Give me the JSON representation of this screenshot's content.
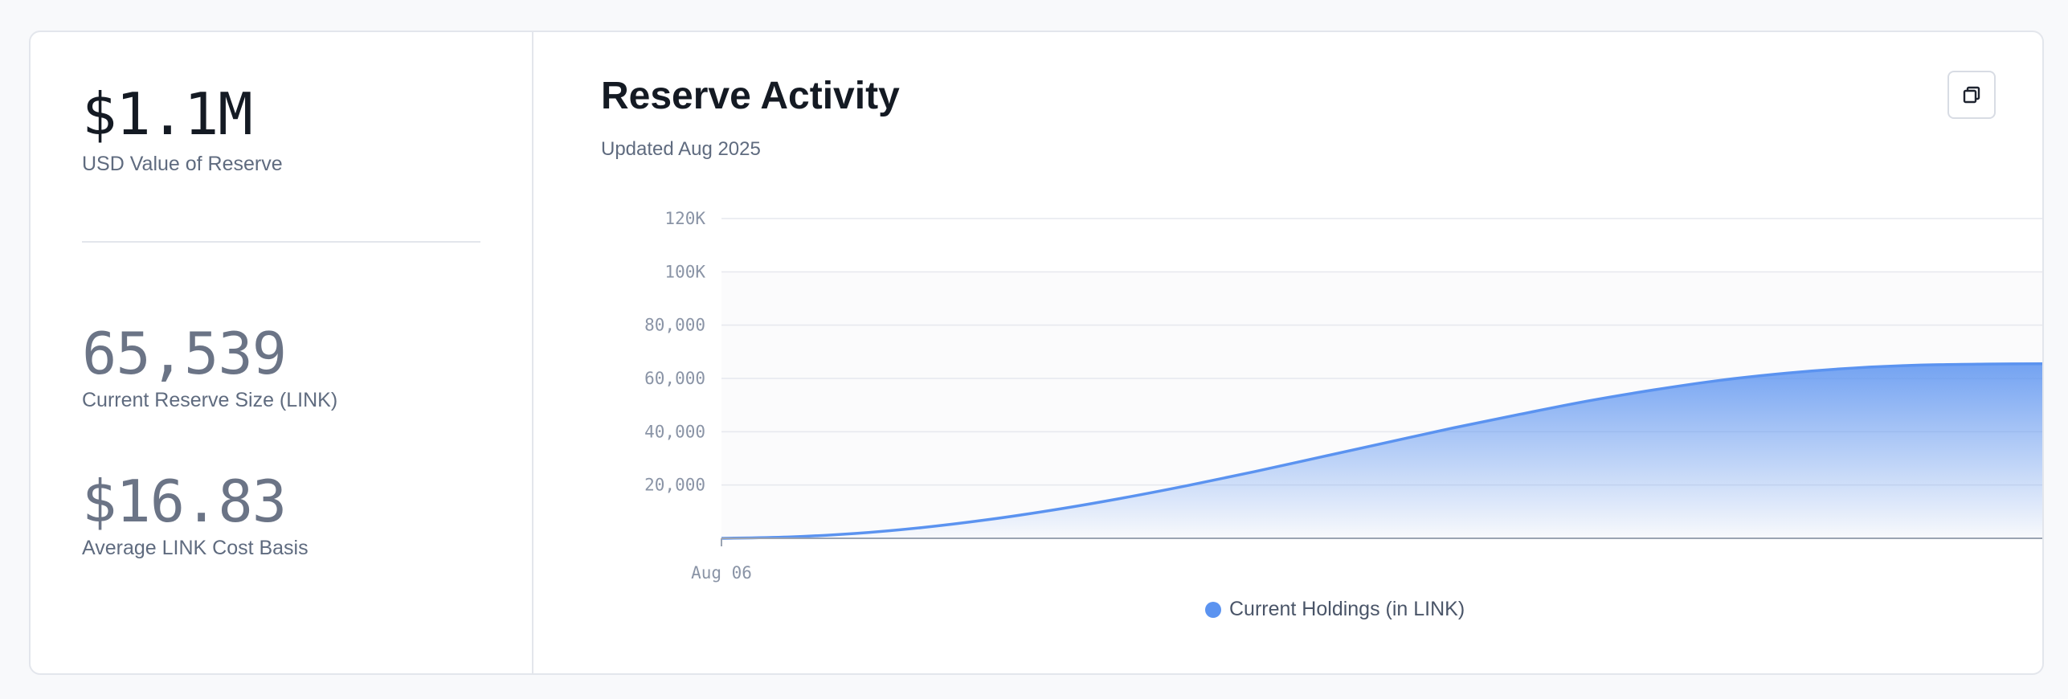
{
  "stats": [
    {
      "value": "$1.1M",
      "label": "USD Value of Reserve"
    },
    {
      "value": "65,539",
      "label": "Current Reserve Size (LINK)"
    },
    {
      "value": "$16.83",
      "label": "Average LINK Cost Basis"
    }
  ],
  "colors": {
    "primary_stat": "#141a23",
    "muted_stat": "#6b7486",
    "accent": "#5b93f0"
  },
  "header": {
    "title": "Reserve Activity",
    "subtitle": "Updated Aug 2025",
    "copy_icon": "copy-icon"
  },
  "chart_data": {
    "type": "area",
    "x_tick_labels": [
      "Aug 06"
    ],
    "y_ticks": [
      20000,
      40000,
      60000,
      80000,
      100000,
      120000
    ],
    "y_tick_labels": [
      "20,000",
      "40,000",
      "60,000",
      "80,000",
      "100K",
      "120K"
    ],
    "ylim": [
      0,
      120000
    ],
    "grid": true,
    "legend": "bottom-center",
    "series": [
      {
        "name": "Current Holdings (in LINK)",
        "color": "#5b93f0",
        "values": [
          0,
          500,
          1800,
          4000,
          7000,
          10700,
          15000,
          19800,
          25000,
          30500,
          36000,
          41500,
          46600,
          51500,
          55700,
          59300,
          62000,
          63900,
          65000,
          65400,
          65539
        ]
      }
    ]
  }
}
